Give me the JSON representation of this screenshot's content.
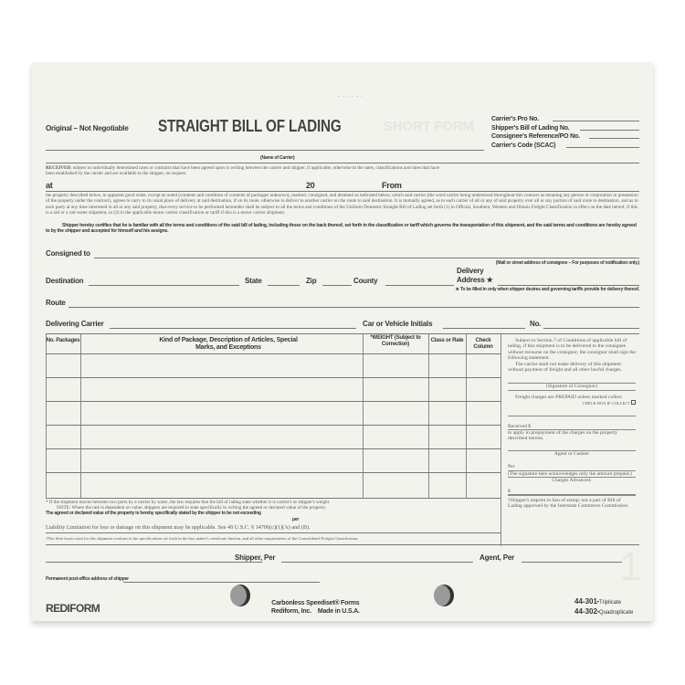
{
  "form": {
    "original": "Original – Not Negotiable",
    "title": "STRAIGHT BILL OF LADING",
    "ghost": "SHORT FORM",
    "right_fields": [
      "Carrier's Pro No.",
      "Shipper's Bill of Lading No.",
      "Consignee's Reference/PO No.",
      "Carrier's Code (SCAC)"
    ],
    "name_of_carrier": "(Name of Carrier)",
    "received_bold": "RECEIVED",
    "received": ", subject to individually determined rates or contracts that have been agreed upon in writing between the carrier and shipper, if applicable, otherwise to the rates, classifications and rules that have been established by the carrier and are available to the shipper, on request:",
    "at": "at",
    "year": "20",
    "from": "From",
    "property": "the property described below, in apparent good order, except as noted (contents and condition of contents of packages unknown), marked, consigned, and destined as indicated below, which said carrier (the word carrier being understood throughout this contract as meaning any person or corporation in possession of the property under the contract), agrees to carry to its usual place of delivery at said destination, if on its route, otherwise to deliver to another carrier on the route to said destination. It is mutually agreed, as to each carrier of all or any of said property over all or any portion of said route to destination, and as to each party at any time interested in all or any said property, that every service to be performed hereunder shall be subject to all the terms and conditions of the Uniform Domestic Straight Bill of Lading set forth (1) in Official, Southern, Western and Illinois Freight Classification in effect on the date hereof, if this is a rail or a rail-water shipment, or (2) in the applicable motor carrier classification or tariff if this is a motor carrier shipment.",
    "certifies": "Shipper hereby certifies that he is familiar with all the terms and conditions of the said bill of lading, including those on the back thereof, set forth in the classification or tariff which governs the transportation of this shipment, and the said terms and conditions are hereby agreed to by the shipper and accepted for himself and his assigns.",
    "consigned_to": "Consigned to",
    "mail_note": "(Mail or street address of consignee – For purposes of notification only.)",
    "destination": "Destination",
    "state": "State",
    "zip": "Zip",
    "county": "County",
    "delivery": "Delivery",
    "address": "Address ★",
    "star_note": "★ To be filled in only when shipper desires and governing tariffs provide for delivery thereof.",
    "route": "Route",
    "delivering_carrier": "Delivering Carrier",
    "car_initials": "Car or Vehicle Initials",
    "no": "No."
  },
  "table": {
    "headers": [
      "No. Packages",
      "Kind of Package, Description of Articles, Special Marks, and Exceptions",
      "*WEIGHT (Subject to Correction)",
      "Class or Rate",
      "Check Column"
    ],
    "side": {
      "section7": "Subject to Section 7 of Conditions of applicable bill of lading, if this shipment is to be delivered to the consignee without recourse on the consignor, the consignor shall sign the following statement.",
      "carrier_shall": "The carrier shall not make delivery of this shipment without payment of freight and all other lawful charges.",
      "signature": "(Signature of Consignor)",
      "prepaid": "Freight charges are PREPAID unless marked collect.",
      "check_box": "CHECK BOX IF COLLECT",
      "received": "Received $",
      "apply": "to apply in prepayment of the charges on the property described hereon.",
      "agent": "Agent or Cashier",
      "per": "Per",
      "sig_ack": "(The signature here acknowledges only the amount prepaid.)",
      "advanced": "Charges Advanced:",
      "dollar": "$",
      "imprint": "†Shipper's imprint in lieu of stamp; not a part of Bill of Lading approved by the Interstate Commerce Commission."
    }
  },
  "footer": {
    "water": "* If the shipment moves between two ports by a carrier by water, the law requires that the bill of lading state whether it is carrier's or shipper's weight.",
    "note": "NOTE: Where the rate is dependent on value, shippers are required to state specifically in writing the agreed or declared value of the property.",
    "declared": "The agreed or declared value of the property is hereby specifically stated by the shipper to be not exceeding",
    "per": "per",
    "liability": "Liability Limitation for loss or damage on this shipment may be applicable. See 49 U.S.C. § 14706(c)(1)(A) and (B).",
    "fibre": "†The fibre boxes used for this shipment conform to the specifications set forth in the box maker's certificate thereon, and all other requirements of the Consolidated Freight Classification.",
    "shipper_per": "Shipper, Per",
    "agent_per": "Agent, Per",
    "copy_no": "1",
    "permanent": "Permanent post-office address of shipper",
    "brand": "REDIFORM",
    "carbonless": "Carbonless Speediset® Forms",
    "company": "Rediform, Inc.",
    "made": "Made in U.S.A.",
    "code1": "44-301",
    "code1_label": "•Triplicate",
    "code2": "44-302",
    "code2_label": "•Quadruplicate"
  }
}
